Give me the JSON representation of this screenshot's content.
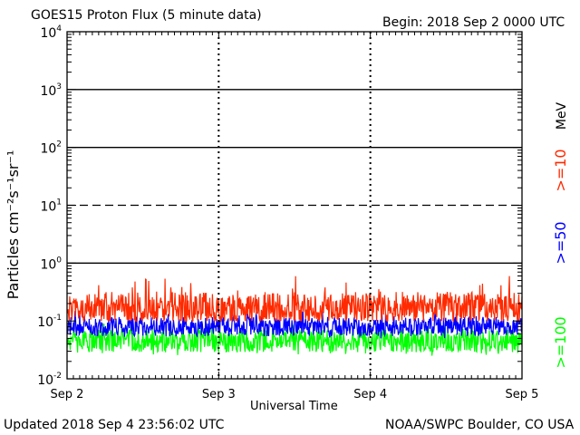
{
  "chart_data": {
    "type": "line",
    "title": "GOES15 Proton Flux (5 minute data)",
    "begin_label": "Begin: 2018 Sep 2 0000 UTC",
    "xlabel": "Universal Time",
    "ylabel": "Particles cm⁻²s⁻¹sr⁻¹",
    "y_scale": "log",
    "ylim": [
      0.01,
      10000
    ],
    "y_ticks": [
      {
        "base": "10",
        "exp": "4"
      },
      {
        "base": "10",
        "exp": "3"
      },
      {
        "base": "10",
        "exp": "2"
      },
      {
        "base": "10",
        "exp": "1"
      },
      {
        "base": "10",
        "exp": "0"
      },
      {
        "base": "10",
        "exp": "-1"
      },
      {
        "base": "10",
        "exp": "-2"
      }
    ],
    "x_ticks": [
      "Sep 2",
      "Sep 3",
      "Sep 4",
      "Sep 5"
    ],
    "x_range_days": [
      0,
      3
    ],
    "grid": "solid at 1e0, 1e2, 1e3; dashed at 1e1; dashed day separators",
    "series": [
      {
        "name": ">=10",
        "color": "#ff2a00",
        "typical": 0.17,
        "range": [
          0.1,
          0.6
        ]
      },
      {
        "name": ">=50",
        "color": "#0000ff",
        "typical": 0.08,
        "range": [
          0.05,
          0.15
        ]
      },
      {
        "name": ">=100",
        "color": "#00ff00",
        "typical": 0.045,
        "range": [
          0.025,
          0.09
        ]
      }
    ],
    "unit_label": "MeV"
  },
  "footer": {
    "updated": "Updated 2018 Sep  4 23:56:02 UTC",
    "credit": "NOAA/SWPC Boulder, CO USA"
  }
}
